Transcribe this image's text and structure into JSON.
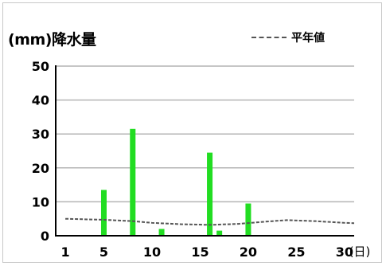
{
  "chart_data": {
    "type": "bar",
    "title": "",
    "ylabel": "(mm)降水量",
    "xlabel": "",
    "x_unit": "(日)",
    "ylim": [
      0,
      50
    ],
    "yticks": [
      0,
      10,
      20,
      30,
      40,
      50
    ],
    "xlim": [
      0,
      31
    ],
    "xticks": [
      1,
      5,
      10,
      15,
      20,
      25,
      30
    ],
    "grid": true,
    "legend_position": "top-right",
    "colors": {
      "bar": "#22dd22",
      "normal_line": "#555555"
    },
    "series": [
      {
        "name": "",
        "type": "bar",
        "points": [
          {
            "x": 5,
            "y": 13.5
          },
          {
            "x": 8,
            "y": 31.5
          },
          {
            "x": 11,
            "y": 2
          },
          {
            "x": 16,
            "y": 24.5
          },
          {
            "x": 17,
            "y": 1.5
          },
          {
            "x": 20,
            "y": 9.5
          }
        ]
      },
      {
        "name": "平年値",
        "type": "line",
        "style": "dashed",
        "points": [
          {
            "x": 1,
            "y": 5
          },
          {
            "x": 5,
            "y": 4.7
          },
          {
            "x": 8,
            "y": 4.3
          },
          {
            "x": 10,
            "y": 3.8
          },
          {
            "x": 13,
            "y": 3.4
          },
          {
            "x": 16,
            "y": 3.2
          },
          {
            "x": 19,
            "y": 3.5
          },
          {
            "x": 22,
            "y": 4.2
          },
          {
            "x": 24,
            "y": 4.6
          },
          {
            "x": 27,
            "y": 4.3
          },
          {
            "x": 30,
            "y": 3.8
          },
          {
            "x": 31,
            "y": 3.7
          }
        ]
      }
    ]
  }
}
